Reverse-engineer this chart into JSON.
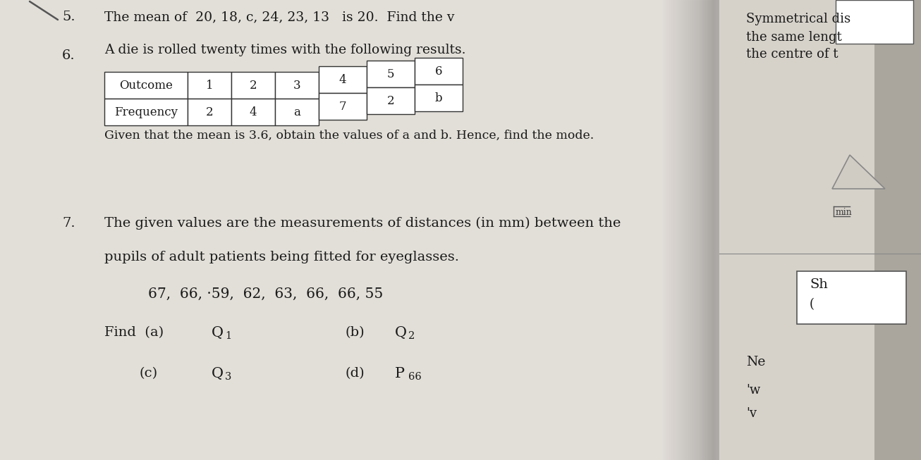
{
  "bg_color": "#c8c4bc",
  "page_bg_left": "#e8e5de",
  "page_bg_right": "#d8d4cc",
  "spine_color": "#b0aca4",
  "q5_number": "5.",
  "q5_text": "The mean of  20, 18, c, 24, 23, 13   is 20.  Find the v",
  "q6_number": "6.",
  "q6_intro": "A die is rolled twenty times with the following results.",
  "table_outcomes": [
    "Outcome",
    "1",
    "2",
    "3",
    "4",
    "5",
    "6"
  ],
  "table_freqs": [
    "Frequency",
    "2",
    "4",
    "a",
    "7",
    "2",
    "b"
  ],
  "q6_note": "Given that the mean is 3.6, obtain the values of a and b. Hence, find the mode.",
  "q7_number": "7.",
  "q7_line1": "The given values are the measurements of distances (in mm) between the",
  "q7_line2": "pupils of adult patients being fitted for eyeglasses.",
  "q7_data": "67,  66, ·59,  62,  63,  66,  66, 55",
  "right_text1": "Symmetrical dis",
  "right_text2": "the same lengt",
  "right_text3": "the centre of t",
  "right_min": "min",
  "right_box_top": "Sh",
  "right_box_bottom": "(",
  "right_Ne": "Ne",
  "right_w": "'w",
  "right_v": "'v"
}
